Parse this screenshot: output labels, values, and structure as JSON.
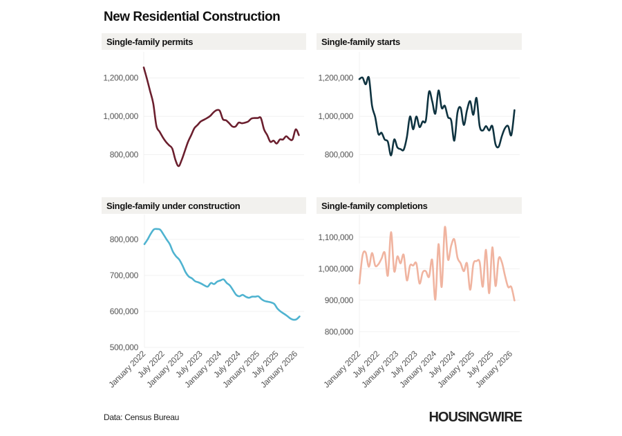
{
  "title": "New Residential Construction",
  "source": "Data: Census Bureau",
  "logo_text": "HOUSINGWIRE",
  "chart_data": [
    {
      "type": "line",
      "title": "Single-family permits",
      "color": "#6b1f2e",
      "x_start": "January 2022",
      "x_end": "February 2026",
      "frequency": "monthly",
      "ylim": [
        650000,
        1300000
      ],
      "yticks": [
        800000,
        1000000,
        1200000
      ],
      "ytick_labels": [
        "800,000",
        "1,000,000",
        "1,200,000"
      ],
      "xtick_labels": [],
      "grid": true,
      "values": [
        1255000,
        1196000,
        1132000,
        1067000,
        950000,
        920000,
        891000,
        867000,
        849000,
        832000,
        773000,
        740000,
        773000,
        820000,
        867000,
        902000,
        938000,
        955000,
        973000,
        982000,
        991000,
        1002000,
        1020000,
        1032000,
        1029000,
        985000,
        979000,
        964000,
        947000,
        947000,
        967000,
        964000,
        967000,
        973000,
        988000,
        991000,
        991000,
        991000,
        932000,
        902000,
        867000,
        873000,
        858000,
        879000,
        879000,
        896000,
        882000,
        879000,
        932000,
        902000
      ]
    },
    {
      "type": "line",
      "title": "Single-family starts",
      "color": "#0f3340",
      "x_start": "January 2022",
      "x_end": "February 2026",
      "frequency": "monthly",
      "ylim": [
        650000,
        1300000
      ],
      "yticks": [
        800000,
        1000000,
        1200000
      ],
      "ytick_labels": [
        "800,000",
        "1,000,000",
        "1,200,000"
      ],
      "xtick_labels": [],
      "grid": true,
      "values": [
        1194000,
        1202000,
        1167000,
        1202000,
        1055000,
        996000,
        908000,
        914000,
        879000,
        867000,
        796000,
        879000,
        838000,
        829000,
        826000,
        891000,
        999000,
        932000,
        999000,
        944000,
        973000,
        979000,
        1128000,
        1079000,
        1014000,
        1135000,
        1044000,
        1055000,
        996000,
        979000,
        873000,
        1020000,
        1044000,
        955000,
        1032000,
        1079000,
        1008000,
        1096000,
        949000,
        926000,
        949000,
        926000,
        949000,
        855000,
        841000,
        896000,
        938000,
        949000,
        902000,
        1032000
      ]
    },
    {
      "type": "line",
      "title": "Single-family under construction",
      "color": "#4fb3d0",
      "x_start": "January 2022",
      "x_end": "February 2026",
      "frequency": "monthly",
      "ylim": [
        500000,
        850000
      ],
      "yticks": [
        500000,
        600000,
        700000,
        800000
      ],
      "ytick_labels": [
        "500,000",
        "600,000",
        "700,000",
        "800,000"
      ],
      "xtick_labels": [
        "January 2022",
        "July 2022",
        "January 2023",
        "July 2023",
        "January 2024",
        "July 2024",
        "January 2025",
        "July 2025",
        "January 2026"
      ],
      "grid": true,
      "values": [
        787000,
        800000,
        816000,
        828000,
        829000,
        827000,
        814000,
        800000,
        787000,
        766000,
        753000,
        744000,
        728000,
        709000,
        697000,
        692000,
        684000,
        681000,
        677000,
        672000,
        669000,
        679000,
        676000,
        683000,
        686000,
        689000,
        679000,
        672000,
        659000,
        646000,
        642000,
        646000,
        641000,
        638000,
        641000,
        641000,
        642000,
        634000,
        629000,
        627000,
        625000,
        621000,
        608000,
        600000,
        594000,
        588000,
        581000,
        577000,
        578000,
        586000
      ]
    },
    {
      "type": "line",
      "title": "Single-family completions",
      "color": "#f0b4a0",
      "x_start": "January 2022",
      "x_end": "February 2026",
      "frequency": "monthly",
      "ylim": [
        750000,
        1150000
      ],
      "yticks": [
        800000,
        900000,
        1000000,
        1100000
      ],
      "ytick_labels": [
        "800,000",
        "900,000",
        "1,000,000",
        "1,100,000"
      ],
      "xtick_labels": [
        "January 2022",
        "July 2022",
        "January 2023",
        "July 2023",
        "January 2024",
        "July 2024",
        "January 2025",
        "July 2025",
        "January 2026"
      ],
      "grid": true,
      "values": [
        953000,
        1042000,
        1051000,
        1006000,
        1050000,
        1010000,
        1014000,
        1032000,
        1051000,
        978000,
        1116000,
        992000,
        1039000,
        1017000,
        1044000,
        963000,
        1010000,
        1010000,
        1017000,
        953000,
        988000,
        992000,
        974000,
        1028000,
        902000,
        1078000,
        942000,
        1132000,
        1029000,
        1073000,
        1093000,
        1035000,
        1017000,
        992000,
        1017000,
        933000,
        1014000,
        1024000,
        1021000,
        943000,
        1060000,
        922000,
        1068000,
        945000,
        1032000,
        1021000,
        978000,
        942000,
        942000,
        899000
      ]
    }
  ]
}
